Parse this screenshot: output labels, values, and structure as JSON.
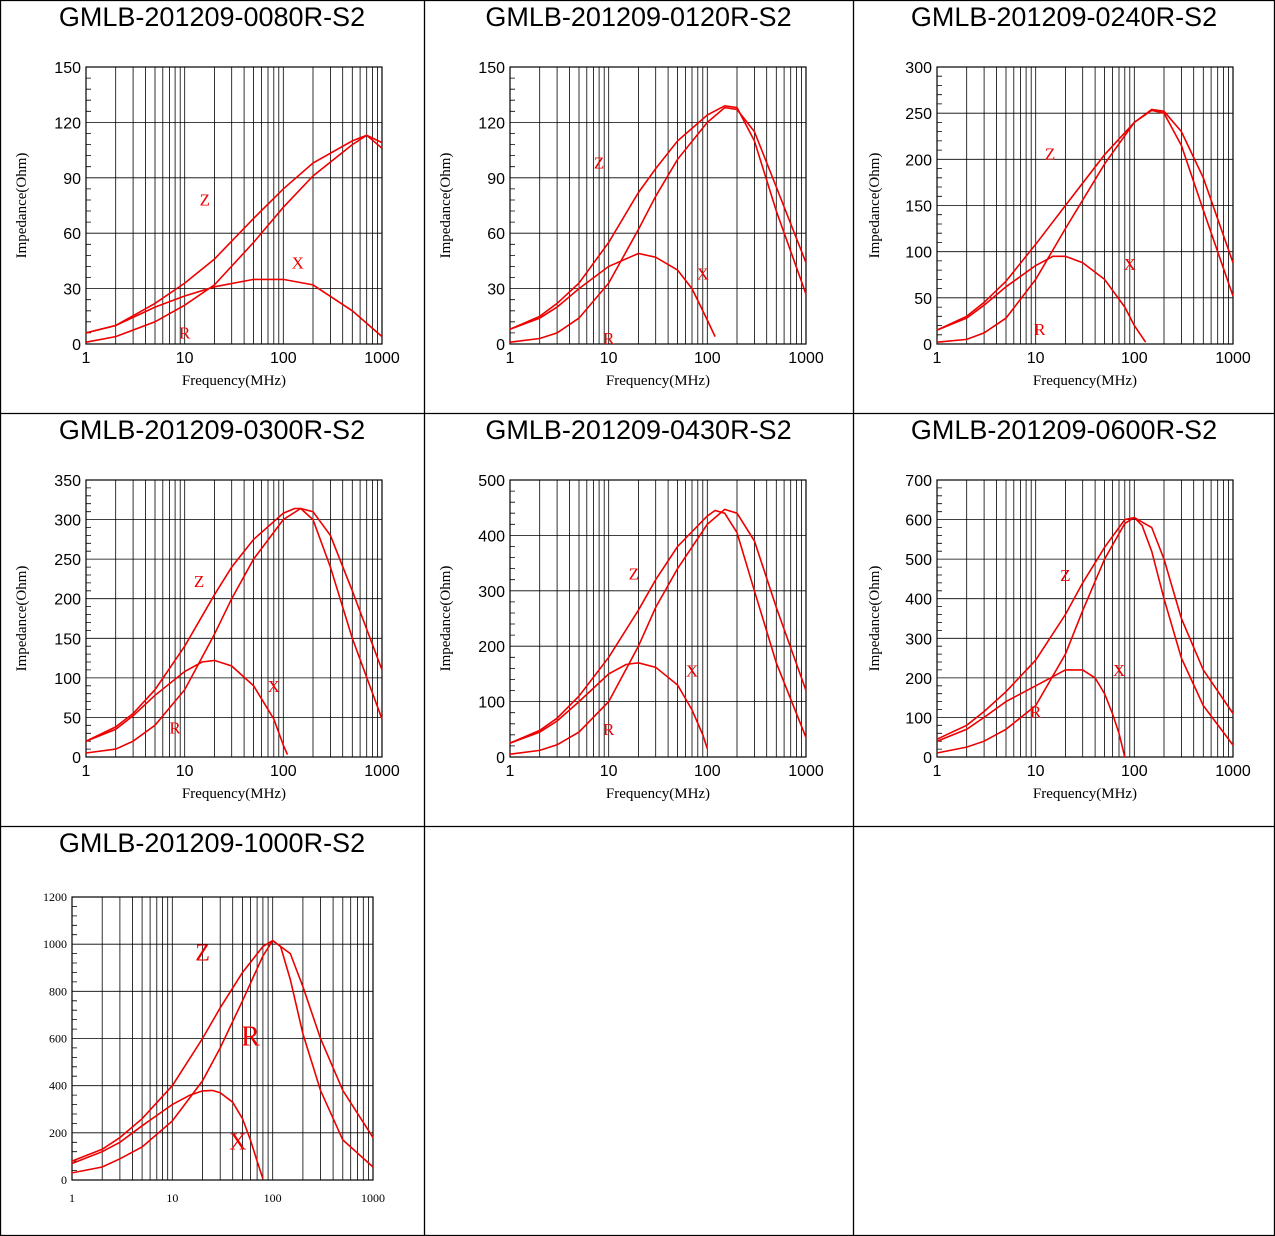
{
  "colors": {
    "curve": "#ee0000",
    "grid": "#000000",
    "border": "#000000"
  },
  "chart_data": [
    {
      "type": "line",
      "title": "GMLB-201209-0080R-S2",
      "xlabel": "Frequency(MHz)",
      "ylabel": "Impedance(Ohm)",
      "x_scale": "log",
      "xlim": [
        1,
        1000
      ],
      "ylim": [
        0,
        150
      ],
      "x_ticks": [
        "1",
        "10",
        "100",
        "1000"
      ],
      "y_ticks": [
        "0",
        "30",
        "60",
        "90",
        "120",
        "150"
      ],
      "grid": true,
      "curve_labels": {
        "Z": "Z",
        "X": "X",
        "R": "R"
      },
      "series": [
        {
          "name": "Z",
          "x": [
            1,
            2,
            5,
            10,
            20,
            50,
            100,
            200,
            500,
            700,
            1000
          ],
          "y": [
            6,
            10,
            22,
            33,
            46,
            68,
            84,
            98,
            110,
            113,
            106
          ]
        },
        {
          "name": "X",
          "x": [
            1,
            2,
            5,
            10,
            20,
            50,
            80,
            100,
            200,
            500,
            1000
          ],
          "y": [
            6,
            10,
            20,
            26,
            31,
            35,
            35,
            35,
            32,
            18,
            4
          ]
        },
        {
          "name": "R",
          "x": [
            1,
            2,
            5,
            10,
            20,
            50,
            100,
            200,
            500,
            700,
            1000
          ],
          "y": [
            1,
            4,
            12,
            21,
            32,
            55,
            74,
            91,
            108,
            113,
            109
          ]
        }
      ]
    },
    {
      "type": "line",
      "title": "GMLB-201209-0120R-S2",
      "xlabel": "Frequency(MHz)",
      "ylabel": "Impedance(Ohm)",
      "x_scale": "log",
      "xlim": [
        1,
        1000
      ],
      "ylim": [
        0,
        150
      ],
      "x_ticks": [
        "1",
        "10",
        "100",
        "1000"
      ],
      "y_ticks": [
        "0",
        "30",
        "60",
        "90",
        "120",
        "150"
      ],
      "grid": true,
      "curve_labels": {
        "Z": "Z",
        "X": "X",
        "R": "R"
      },
      "series": [
        {
          "name": "Z",
          "x": [
            1,
            2,
            3,
            5,
            10,
            20,
            30,
            50,
            100,
            150,
            200,
            300,
            500,
            1000
          ],
          "y": [
            8,
            15,
            22,
            33,
            55,
            82,
            95,
            110,
            124,
            129,
            128,
            110,
            72,
            27
          ]
        },
        {
          "name": "X",
          "x": [
            1,
            2,
            3,
            5,
            10,
            20,
            30,
            50,
            70,
            100,
            120
          ],
          "y": [
            8,
            14,
            20,
            30,
            42,
            49,
            47,
            40,
            30,
            13,
            4
          ]
        },
        {
          "name": "R",
          "x": [
            1,
            2,
            3,
            5,
            10,
            20,
            30,
            50,
            100,
            150,
            200,
            300,
            500,
            1000
          ],
          "y": [
            1,
            3,
            6,
            14,
            33,
            62,
            80,
            100,
            120,
            128,
            127,
            115,
            85,
            44
          ]
        }
      ]
    },
    {
      "type": "line",
      "title": "GMLB-201209-0240R-S2",
      "xlabel": "Frequency(MHz)",
      "ylabel": "Impedance(Ohm)",
      "x_scale": "log",
      "xlim": [
        1,
        1000
      ],
      "ylim": [
        0,
        300
      ],
      "x_ticks": [
        "1",
        "10",
        "100",
        "1000"
      ],
      "y_ticks": [
        "0",
        "50",
        "100",
        "150",
        "200",
        "250",
        "300"
      ],
      "grid": true,
      "curve_labels": {
        "Z": "Z",
        "X": "X",
        "R": "R"
      },
      "series": [
        {
          "name": "Z",
          "x": [
            1,
            2,
            3,
            5,
            10,
            20,
            50,
            100,
            150,
            200,
            300,
            500,
            1000
          ],
          "y": [
            15,
            30,
            45,
            68,
            108,
            150,
            205,
            240,
            253,
            250,
            215,
            145,
            52
          ]
        },
        {
          "name": "X",
          "x": [
            1,
            2,
            3,
            5,
            10,
            15,
            20,
            30,
            50,
            80,
            100,
            130
          ],
          "y": [
            15,
            28,
            42,
            62,
            85,
            95,
            95,
            88,
            70,
            40,
            20,
            2
          ]
        },
        {
          "name": "R",
          "x": [
            1,
            2,
            3,
            5,
            10,
            20,
            50,
            100,
            150,
            200,
            300,
            500,
            1000
          ],
          "y": [
            2,
            5,
            12,
            28,
            70,
            125,
            195,
            240,
            254,
            252,
            230,
            180,
            88
          ]
        }
      ]
    },
    {
      "type": "line",
      "title": "GMLB-201209-0300R-S2",
      "xlabel": "Frequency(MHz)",
      "ylabel": "Impedance(Ohm)",
      "x_scale": "log",
      "xlim": [
        1,
        1000
      ],
      "ylim": [
        0,
        350
      ],
      "x_ticks": [
        "1",
        "10",
        "100",
        "1000"
      ],
      "y_ticks": [
        "0",
        "50",
        "100",
        "150",
        "200",
        "250",
        "300",
        "350"
      ],
      "grid": true,
      "curve_labels": {
        "Z": "Z",
        "X": "X",
        "R": "R"
      },
      "series": [
        {
          "name": "Z",
          "x": [
            1,
            2,
            3,
            5,
            10,
            20,
            30,
            50,
            100,
            130,
            150,
            200,
            300,
            500,
            1000
          ],
          "y": [
            20,
            38,
            55,
            85,
            140,
            205,
            240,
            275,
            308,
            314,
            314,
            300,
            240,
            150,
            48
          ]
        },
        {
          "name": "X",
          "x": [
            1,
            2,
            3,
            5,
            10,
            15,
            20,
            30,
            50,
            80,
            100,
            110
          ],
          "y": [
            20,
            35,
            52,
            78,
            108,
            120,
            122,
            115,
            90,
            48,
            15,
            3
          ]
        },
        {
          "name": "R",
          "x": [
            1,
            2,
            3,
            5,
            10,
            20,
            30,
            50,
            100,
            150,
            200,
            300,
            500,
            1000
          ],
          "y": [
            5,
            10,
            20,
            40,
            85,
            155,
            200,
            250,
            300,
            314,
            310,
            280,
            210,
            110
          ]
        }
      ]
    },
    {
      "type": "line",
      "title": "GMLB-201209-0430R-S2",
      "xlabel": "Frequency(MHz)",
      "ylabel": "Impedance(Ohm)",
      "x_scale": "log",
      "xlim": [
        1,
        1000
      ],
      "ylim": [
        0,
        500
      ],
      "x_ticks": [
        "1",
        "10",
        "100",
        "1000"
      ],
      "y_ticks": [
        "0",
        "100",
        "200",
        "300",
        "400",
        "500"
      ],
      "grid": true,
      "curve_labels": {
        "Z": "Z",
        "X": "X",
        "R": "R"
      },
      "series": [
        {
          "name": "Z",
          "x": [
            1,
            2,
            3,
            5,
            10,
            20,
            30,
            50,
            100,
            120,
            150,
            200,
            300,
            500,
            1000
          ],
          "y": [
            25,
            48,
            70,
            110,
            180,
            265,
            320,
            380,
            435,
            445,
            440,
            405,
            300,
            170,
            35
          ]
        },
        {
          "name": "X",
          "x": [
            1,
            2,
            3,
            5,
            10,
            15,
            20,
            30,
            50,
            70,
            90,
            100
          ],
          "y": [
            25,
            45,
            65,
            100,
            150,
            167,
            170,
            162,
            130,
            85,
            40,
            15
          ]
        },
        {
          "name": "R",
          "x": [
            1,
            2,
            3,
            5,
            10,
            20,
            30,
            50,
            100,
            150,
            200,
            300,
            500,
            1000
          ],
          "y": [
            5,
            12,
            22,
            45,
            100,
            200,
            270,
            340,
            420,
            447,
            440,
            390,
            270,
            120
          ]
        }
      ]
    },
    {
      "type": "line",
      "title": "GMLB-201209-0600R-S2",
      "xlabel": "Frequency(MHz)",
      "ylabel": "Impedance(Ohm)",
      "x_scale": "log",
      "xlim": [
        1,
        1000
      ],
      "ylim": [
        0,
        700
      ],
      "x_ticks": [
        "1",
        "10",
        "100",
        "1000"
      ],
      "y_ticks": [
        "0",
        "100",
        "200",
        "300",
        "400",
        "500",
        "600",
        "700"
      ],
      "grid": true,
      "curve_labels": {
        "Z": "Z",
        "X": "X",
        "R": "R"
      },
      "series": [
        {
          "name": "Z",
          "x": [
            1,
            2,
            3,
            5,
            10,
            20,
            30,
            50,
            80,
            100,
            120,
            150,
            200,
            300,
            500,
            1000
          ],
          "y": [
            45,
            80,
            115,
            165,
            245,
            360,
            440,
            530,
            600,
            605,
            585,
            520,
            400,
            250,
            130,
            30
          ]
        },
        {
          "name": "X",
          "x": [
            1,
            2,
            3,
            5,
            10,
            20,
            30,
            40,
            50,
            60,
            70,
            80
          ],
          "y": [
            40,
            70,
            100,
            140,
            180,
            220,
            220,
            200,
            160,
            110,
            60,
            0
          ]
        },
        {
          "name": "R",
          "x": [
            1,
            2,
            3,
            5,
            10,
            20,
            30,
            50,
            80,
            100,
            150,
            200,
            300,
            500,
            1000
          ],
          "y": [
            10,
            25,
            40,
            70,
            130,
            260,
            370,
            500,
            590,
            605,
            580,
            500,
            350,
            220,
            110
          ]
        }
      ]
    },
    {
      "type": "line",
      "title": "GMLB-201209-1000R-S2",
      "xlabel": "",
      "ylabel": "",
      "x_scale": "log",
      "xlim": [
        1,
        1000
      ],
      "ylim": [
        0,
        1200
      ],
      "x_ticks": [
        "1",
        "10",
        "100",
        "1000"
      ],
      "y_ticks": [
        "0",
        "200",
        "400",
        "600",
        "800",
        "1000",
        "1200"
      ],
      "grid": true,
      "curve_labels": {
        "Z": "Z",
        "R": "R",
        "X": "X"
      },
      "series": [
        {
          "name": "Z",
          "x": [
            1,
            2,
            3,
            5,
            10,
            20,
            30,
            50,
            80,
            100,
            120,
            150,
            200,
            300,
            500,
            1000
          ],
          "y": [
            80,
            130,
            180,
            260,
            400,
            600,
            730,
            880,
            990,
            1015,
            990,
            850,
            620,
            380,
            170,
            55
          ]
        },
        {
          "name": "X",
          "x": [
            1,
            2,
            3,
            5,
            10,
            15,
            20,
            25,
            30,
            40,
            50,
            60,
            70,
            80
          ],
          "y": [
            70,
            120,
            160,
            230,
            320,
            360,
            378,
            380,
            370,
            330,
            260,
            170,
            80,
            5
          ]
        },
        {
          "name": "R",
          "x": [
            1,
            2,
            3,
            5,
            10,
            20,
            30,
            50,
            80,
            100,
            150,
            200,
            300,
            500,
            1000
          ],
          "y": [
            30,
            55,
            90,
            140,
            250,
            420,
            560,
            760,
            950,
            1015,
            960,
            820,
            600,
            380,
            180
          ]
        }
      ]
    }
  ]
}
